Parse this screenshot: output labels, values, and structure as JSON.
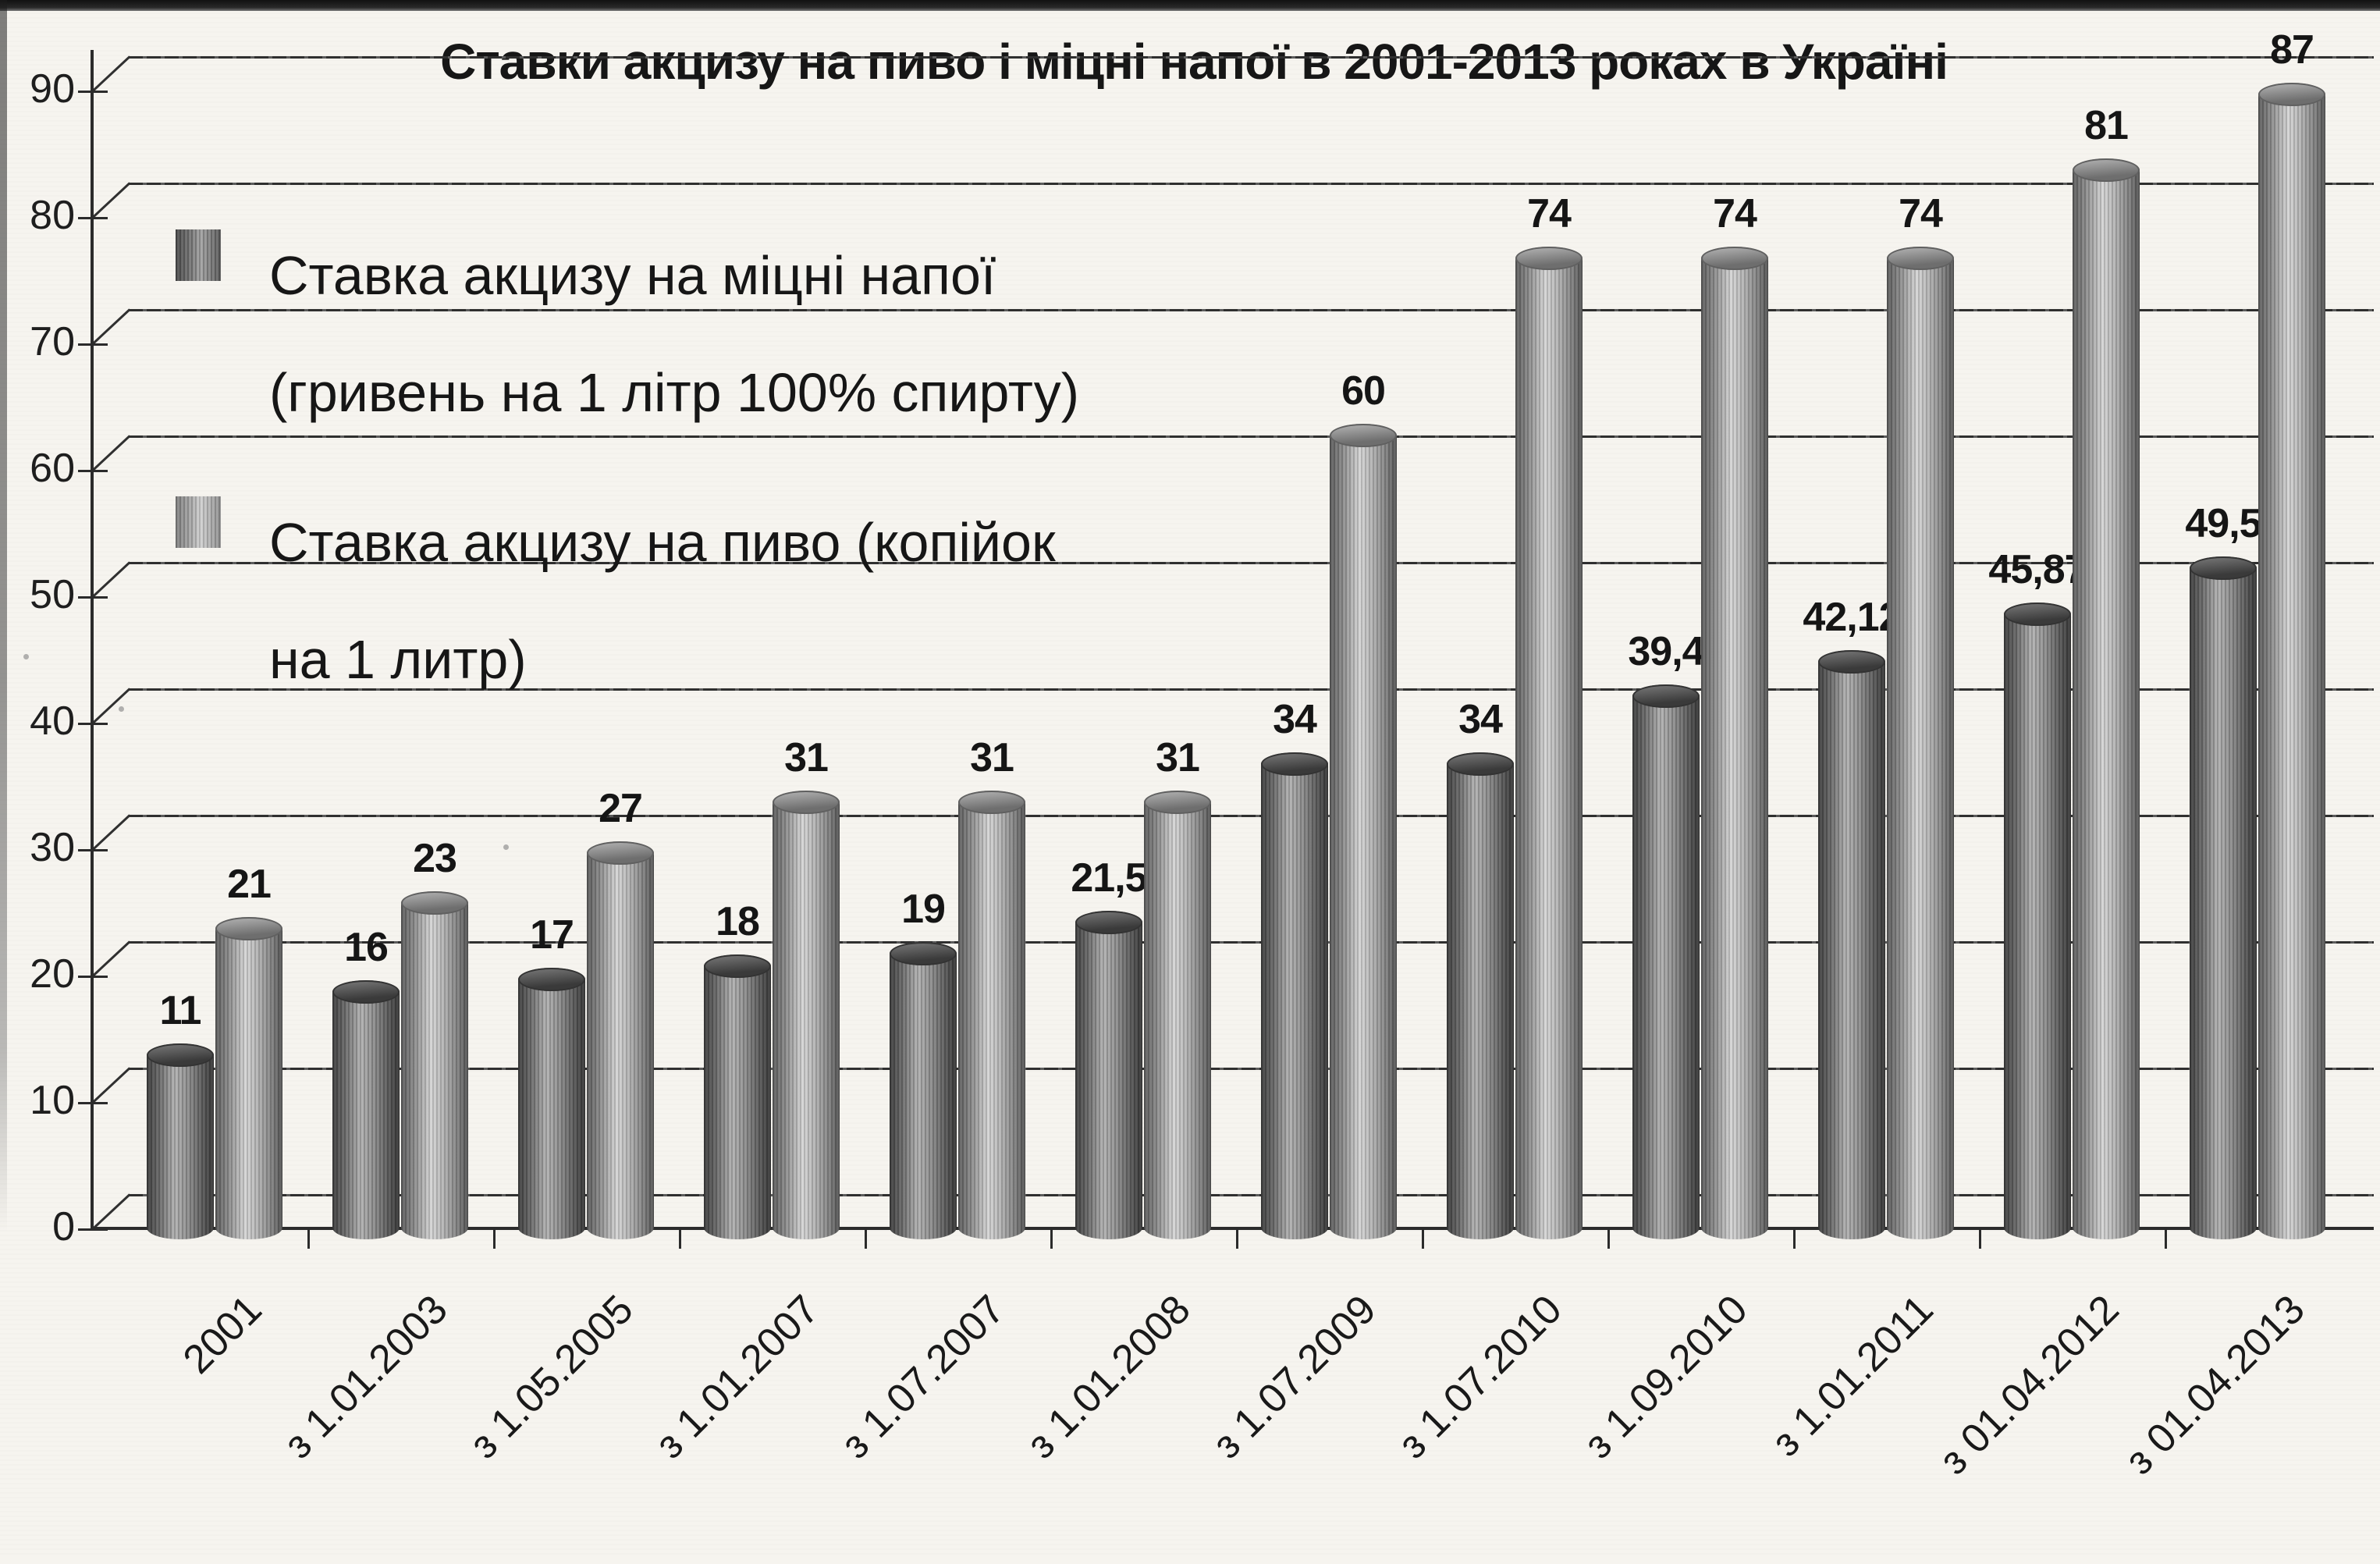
{
  "title": "Ставки акцизу на пиво і міцні напої в 2001-2013 роках в Україні",
  "legend": {
    "items": [
      {
        "label": "Ставка акцизу на міцні напої (гривень на 1 літр 100% спирту)",
        "lines": [
          "Ставка акцизу на міцні напої",
          "(гривень на 1 літр 100% спирту)"
        ],
        "swatch_color": "#5a5a5a"
      },
      {
        "label": "Ставка акцизу на пиво (копійок на 1 литр)",
        "lines": [
          "Ставка акцизу на пиво (копійок",
          "на 1 литр)"
        ],
        "swatch_color": "#9a9a9a"
      }
    ]
  },
  "chart_data": {
    "type": "bar",
    "style": "3d-cylinder-grayscale-scan",
    "title": "Ставки акцизу на пиво і міцні напої в 2001-2013 роках в Україні",
    "categories": [
      "2001",
      "з 1.01.2003",
      "з 1.05.2005",
      "з 1.01.2007",
      "з 1.07.2007",
      "з 1.01.2008",
      "з 1.07.2009",
      "з 1.07.2010",
      "з 1.09.2010",
      "з 1.01.2011",
      "з 01.04.2012",
      "з 01.04.2013"
    ],
    "series": [
      {
        "name": "Ставка акцизу на міцні напої (гривень на 1 літр 100% спирту)",
        "color": "#5a5a5a",
        "values": [
          11,
          16,
          17,
          18,
          19,
          21.5,
          34,
          34,
          39.4,
          42.12,
          45.87,
          49.5
        ],
        "labels": [
          "11",
          "16",
          "17",
          "18",
          "19",
          "21,5",
          "34",
          "34",
          "39,4",
          "42,12",
          "45,87",
          "49,5"
        ]
      },
      {
        "name": "Ставка акцизу на пиво (копійок на 1 литр)",
        "color": "#9a9a9a",
        "values": [
          21,
          23,
          27,
          31,
          31,
          31,
          60,
          74,
          74,
          74,
          81,
          87
        ],
        "labels": [
          "21",
          "23",
          "27",
          "31",
          "31",
          "31",
          "60",
          "74",
          "74",
          "74",
          "81",
          "87"
        ]
      }
    ],
    "y_axis": {
      "min": 0,
      "max": 90,
      "step": 10,
      "ticks": [
        "0",
        "10",
        "20",
        "30",
        "40",
        "50",
        "60",
        "70",
        "80",
        "90"
      ]
    },
    "xlabel": "",
    "ylabel": "",
    "grid": true,
    "legend_position": "upper-left-inside",
    "axis_color": "#2b2b2b",
    "background_color": "#f6f4ef"
  }
}
